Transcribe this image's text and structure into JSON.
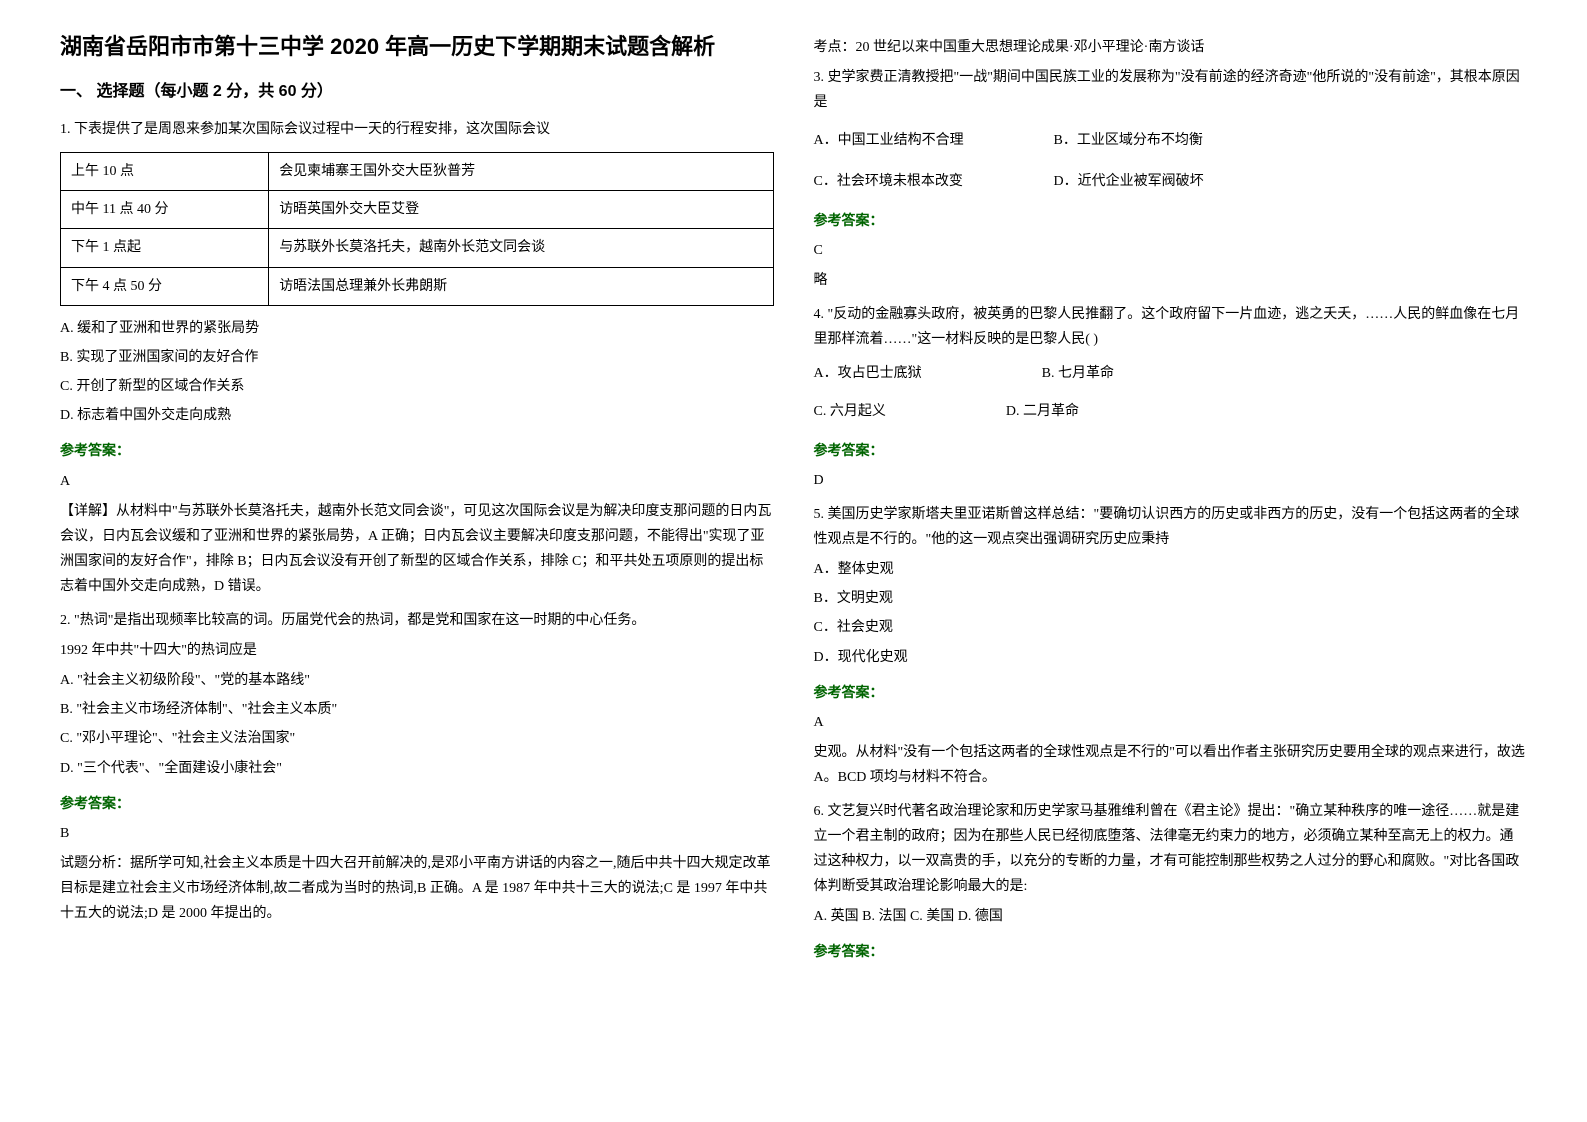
{
  "left": {
    "title": "湖南省岳阳市市第十三中学 2020 年高一历史下学期期末试题含解析",
    "section1": "一、 选择题（每小题 2 分，共 60 分）",
    "q1": {
      "text": "1. 下表提供了是周恩来参加某次国际会议过程中一天的行程安排，这次国际会议",
      "table": [
        [
          "上午 10 点",
          "会见柬埔寨王国外交大臣狄普芳"
        ],
        [
          "中午 11 点 40 分",
          "访晤英国外交大臣艾登"
        ],
        [
          "下午 1 点起",
          "与苏联外长莫洛托夫，越南外长范文同会谈"
        ],
        [
          "下午 4 点 50 分",
          "访晤法国总理兼外长弗朗斯"
        ]
      ],
      "opts": [
        "A. 缓和了亚洲和世界的紧张局势",
        "B. 实现了亚洲国家间的友好合作",
        "C. 开创了新型的区域合作关系",
        "D. 标志着中国外交走向成熟"
      ],
      "answerLabel": "参考答案：",
      "answer": "A",
      "explanation": "【详解】从材料中\"与苏联外长莫洛托夫，越南外长范文同会谈\"，可见这次国际会议是为解决印度支那问题的日内瓦会议，日内瓦会议缓和了亚洲和世界的紧张局势，A 正确；日内瓦会议主要解决印度支那问题，不能得出\"实现了亚洲国家间的友好合作\"，排除 B；日内瓦会议没有开创了新型的区域合作关系，排除 C；和平共处五项原则的提出标志着中国外交走向成熟，D 错误。"
    },
    "q2": {
      "text1": "2. \"热词\"是指出现频率比较高的词。历届党代会的热词，都是党和国家在这一时期的中心任务。",
      "text2": "1992 年中共\"十四大\"的热词应是",
      "opts": [
        "A. \"社会主义初级阶段\"、\"党的基本路线\"",
        "B. \"社会主义市场经济体制\"、\"社会主义本质\"",
        "C. \"邓小平理论\"、\"社会主义法治国家\"",
        "D. \"三个代表\"、\"全面建设小康社会\""
      ],
      "answerLabel": "参考答案：",
      "answer": "B",
      "explanation": "试题分析：据所学可知,社会主义本质是十四大召开前解决的,是邓小平南方讲话的内容之一,随后中共十四大规定改革目标是建立社会主义市场经济体制,故二者成为当时的热词,B 正确。A 是 1987 年中共十三大的说法;C 是 1997 年中共十五大的说法;D 是 2000 年提出的。"
    }
  },
  "right": {
    "note": "考点：20 世纪以来中国重大思想理论成果·邓小平理论·南方谈话",
    "q3": {
      "text": "3. 史学家费正清教授把\"一战\"期间中国民族工业的发展称为\"没有前途的经济奇迹\"他所说的\"没有前途\"，其根本原因是",
      "optsA": "A．中国工业结构不合理",
      "optsB": "B．工业区域分布不均衡",
      "optsC": "C．社会环境未根本改变",
      "optsD": "D．近代企业被军阀破坏",
      "answerLabel": "参考答案：",
      "answer": "C",
      "extra": "略"
    },
    "q4": {
      "text": "4. \"反动的金融寡头政府，被英勇的巴黎人民推翻了。这个政府留下一片血迹，逃之夭夭，……人民的鲜血像在七月里那样流着……\"这一材料反映的是巴黎人民(   )",
      "optsA": "A．攻占巴士底狱",
      "optsB": "B. 七月革命",
      "optsC": "C. 六月起义",
      "optsD": "D. 二月革命",
      "answerLabel": "参考答案：",
      "answer": "D"
    },
    "q5": {
      "text": "5. 美国历史学家斯塔夫里亚诺斯曾这样总结：\"要确切认识西方的历史或非西方的历史，没有一个包括这两者的全球性观点是不行的。\"他的这一观点突出强调研究历史应秉持",
      "opts": [
        "A．整体史观",
        "B．文明史观",
        "C．社会史观",
        "D．现代化史观"
      ],
      "answerLabel": "参考答案：",
      "answer": "A",
      "explanation": "史观。从材料\"没有一个包括这两者的全球性观点是不行的\"可以看出作者主张研究历史要用全球的观点来进行，故选 A。BCD 项均与材料不符合。"
    },
    "q6": {
      "text": "6. 文艺复兴时代著名政治理论家和历史学家马基雅维利曾在《君主论》提出：\"确立某种秩序的唯一途径……就是建立一个君主制的政府；因为在那些人民已经彻底堕落、法律毫无约束力的地方，必须确立某种至高无上的权力。通过这种权力，以一双高贵的手，以充分的专断的力量，才有可能控制那些权势之人过分的野心和腐败。\"对比各国政体判断受其政治理论影响最大的是:",
      "opts": "A. 英国  B. 法国  C. 美国  D. 德国",
      "answerLabel": "参考答案："
    }
  }
}
